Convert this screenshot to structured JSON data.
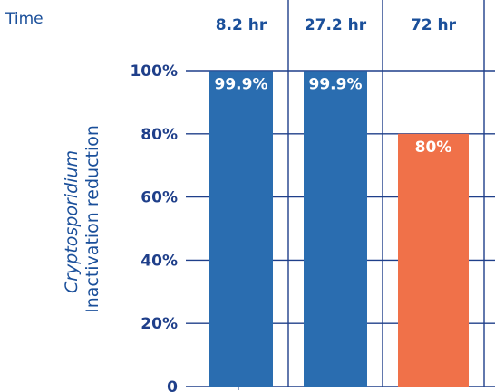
{
  "chart_data": {
    "type": "bar",
    "row_label": "Time",
    "categories": [
      "8.2 hr",
      "27.2 hr",
      "72 hr"
    ],
    "values": [
      99.9,
      99.9,
      80
    ],
    "data_labels": [
      "99.9%",
      "99.9%",
      "80%"
    ],
    "ylabel_italic": "Cryptosporidium",
    "ylabel": "Inactivation reduction",
    "ylim": [
      0,
      100
    ],
    "yticks": [
      {
        "value": 0,
        "label": "0"
      },
      {
        "value": 20,
        "label": "20%"
      },
      {
        "value": 40,
        "label": "40%"
      },
      {
        "value": 60,
        "label": "60%"
      },
      {
        "value": 80,
        "label": "80%"
      },
      {
        "value": 100,
        "label": "100%"
      }
    ],
    "grid": true
  },
  "colors": {
    "bar": "#2a6db0",
    "highlight": "#f07149",
    "axis": "#1f3f8a",
    "text": "#1a4f9a"
  }
}
